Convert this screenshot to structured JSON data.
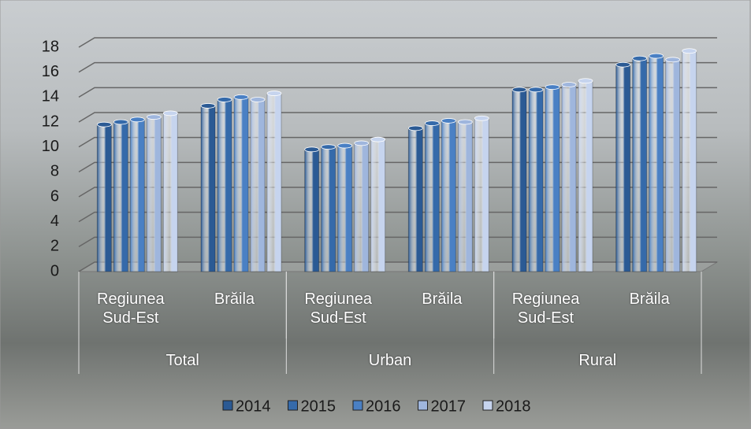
{
  "chart_data": {
    "type": "bar",
    "categories": [
      "Regiunea Sud-Est",
      "Brăila",
      "Regiunea Sud-Est",
      "Brăila",
      "Regiunea Sud-Est",
      "Brăila"
    ],
    "groups": [
      "Total",
      "Urban",
      "Rural"
    ],
    "series": [
      {
        "name": "2014",
        "color": "#2b5a94",
        "values": [
          11.8,
          13.3,
          9.8,
          11.5,
          14.6,
          16.6
        ]
      },
      {
        "name": "2015",
        "color": "#356aaa",
        "values": [
          12.0,
          13.8,
          10.0,
          11.9,
          14.6,
          17.1
        ]
      },
      {
        "name": "2016",
        "color": "#4a80c4",
        "values": [
          12.2,
          14.0,
          10.1,
          12.1,
          14.8,
          17.3
        ]
      },
      {
        "name": "2017",
        "color": "#9fb6dd",
        "values": [
          12.4,
          13.8,
          10.3,
          12.0,
          15.0,
          17.0
        ]
      },
      {
        "name": "2018",
        "color": "#c6d4ee",
        "values": [
          12.7,
          14.3,
          10.6,
          12.3,
          15.3,
          17.7
        ]
      }
    ],
    "ylim": [
      0,
      18
    ],
    "yticks": [
      0,
      2,
      4,
      6,
      8,
      10,
      12,
      14,
      16,
      18
    ],
    "grid": true
  }
}
